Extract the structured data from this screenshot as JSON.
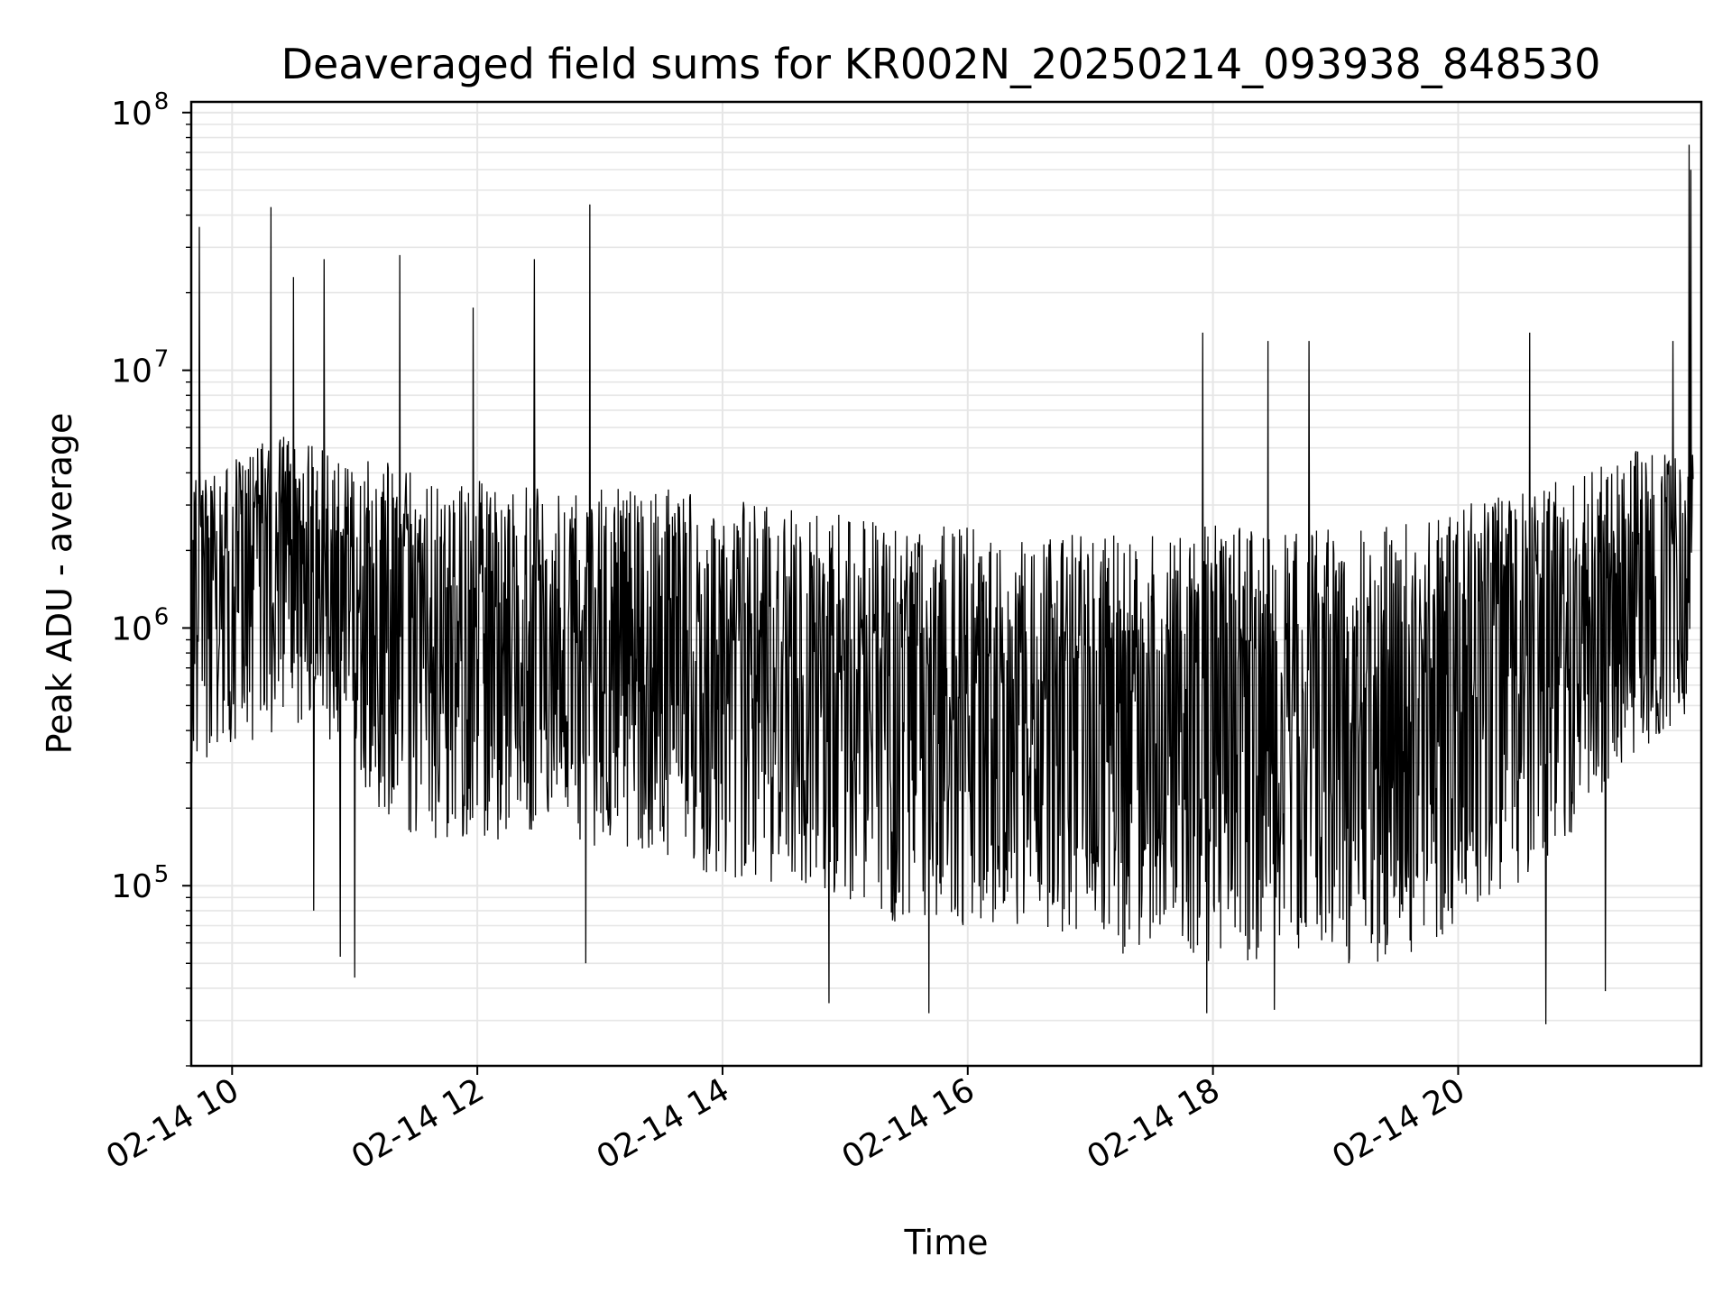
{
  "chart_data": {
    "type": "line",
    "title": "Deaveraged field sums for KR002N_20250214_093938_848530",
    "xlabel": "Time",
    "ylabel": "Peak ADU - average",
    "yscale": "log",
    "grid": true,
    "legend": "none",
    "line_color": "#000000",
    "x_tick_labels": [
      "02-14 10",
      "02-14 12",
      "02-14 14",
      "02-14 16",
      "02-14 18",
      "02-14 20"
    ],
    "y_tick_labels": [
      {
        "base": "10",
        "exp": "5"
      },
      {
        "base": "10",
        "exp": "6"
      },
      {
        "base": "10",
        "exp": "7"
      },
      {
        "base": "10",
        "exp": "8"
      }
    ],
    "xlim": [
      "2025-02-14 09:40",
      "2025-02-14 21:59"
    ],
    "ylim": [
      20000,
      110000000
    ],
    "series": [
      {
        "x_start": "2025-02-14 09:40",
        "x_end": "2025-02-14 21:55",
        "envelope": [
          {
            "t": "2025-02-14 09:40",
            "low": 300000,
            "high": 4000000,
            "median": 1800000
          },
          {
            "t": "2025-02-14 10:30",
            "low": 400000,
            "high": 6000000,
            "median": 2000000
          },
          {
            "t": "2025-02-14 11:30",
            "low": 150000,
            "high": 4000000,
            "median": 1200000
          },
          {
            "t": "2025-02-14 12:30",
            "low": 150000,
            "high": 3500000,
            "median": 1000000
          },
          {
            "t": "2025-02-14 13:30",
            "low": 120000,
            "high": 3500000,
            "median": 800000
          },
          {
            "t": "2025-02-14 14:30",
            "low": 100000,
            "high": 3000000,
            "median": 700000
          },
          {
            "t": "2025-02-14 15:30",
            "low": 70000,
            "high": 2500000,
            "median": 500000
          },
          {
            "t": "2025-02-14 16:30",
            "low": 70000,
            "high": 2500000,
            "median": 500000
          },
          {
            "t": "2025-02-14 17:30",
            "low": 50000,
            "high": 2500000,
            "median": 450000
          },
          {
            "t": "2025-02-14 18:30",
            "low": 50000,
            "high": 2500000,
            "median": 450000
          },
          {
            "t": "2025-02-14 19:30",
            "low": 50000,
            "high": 2500000,
            "median": 500000
          },
          {
            "t": "2025-02-14 20:30",
            "low": 100000,
            "high": 3500000,
            "median": 900000
          },
          {
            "t": "2025-02-14 21:30",
            "low": 300000,
            "high": 5000000,
            "median": 1600000
          },
          {
            "t": "2025-02-14 21:55",
            "low": 500000,
            "high": 5000000,
            "median": 1700000
          }
        ],
        "spikes": [
          {
            "t": "2025-02-14 09:44",
            "value": 36000000
          },
          {
            "t": "2025-02-14 10:19",
            "value": 43000000
          },
          {
            "t": "2025-02-14 10:30",
            "value": 23000000
          },
          {
            "t": "2025-02-14 10:45",
            "value": 27000000
          },
          {
            "t": "2025-02-14 11:22",
            "value": 28000000
          },
          {
            "t": "2025-02-14 11:58",
            "value": 17500000
          },
          {
            "t": "2025-02-14 12:28",
            "value": 27000000
          },
          {
            "t": "2025-02-14 12:55",
            "value": 44000000
          },
          {
            "t": "2025-02-14 17:55",
            "value": 14000000
          },
          {
            "t": "2025-02-14 18:27",
            "value": 13000000
          },
          {
            "t": "2025-02-14 18:47",
            "value": 13000000
          },
          {
            "t": "2025-02-14 20:35",
            "value": 14000000
          },
          {
            "t": "2025-02-14 21:45",
            "value": 13000000
          },
          {
            "t": "2025-02-14 21:53",
            "value": 75000000
          },
          {
            "t": "2025-02-14 21:54",
            "value": 60000000
          }
        ],
        "dips": [
          {
            "t": "2025-02-14 10:40",
            "value": 80000
          },
          {
            "t": "2025-02-14 10:53",
            "value": 53000
          },
          {
            "t": "2025-02-14 11:00",
            "value": 44000
          },
          {
            "t": "2025-02-14 12:53",
            "value": 50000
          },
          {
            "t": "2025-02-14 14:52",
            "value": 35000
          },
          {
            "t": "2025-02-14 15:41",
            "value": 32000
          },
          {
            "t": "2025-02-14 17:57",
            "value": 32000
          },
          {
            "t": "2025-02-14 18:30",
            "value": 33000
          },
          {
            "t": "2025-02-14 20:43",
            "value": 29000
          },
          {
            "t": "2025-02-14 21:12",
            "value": 39000
          }
        ]
      }
    ]
  }
}
